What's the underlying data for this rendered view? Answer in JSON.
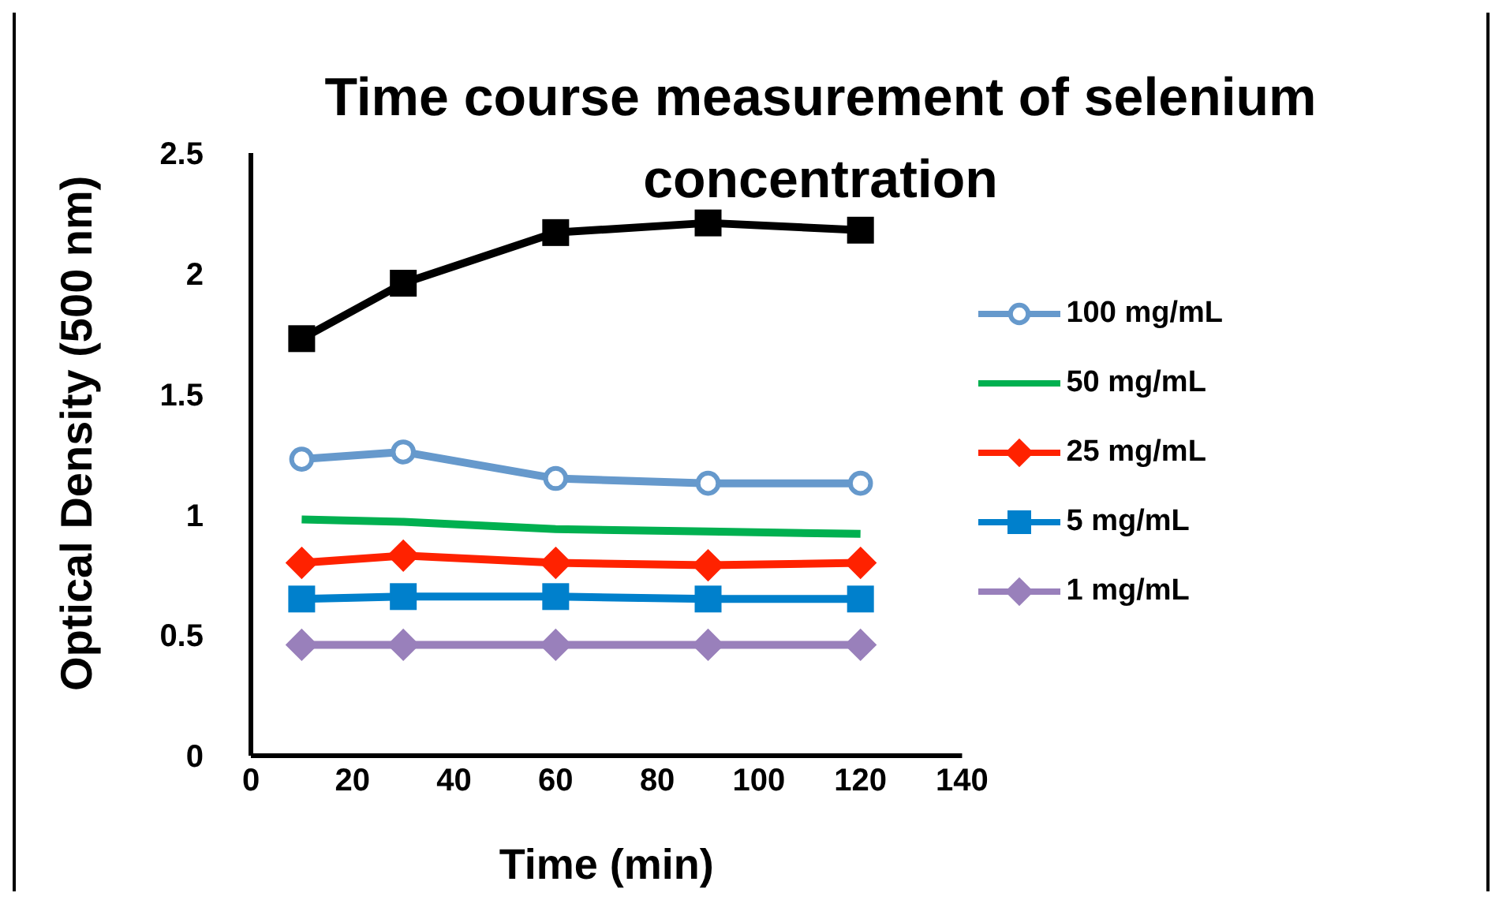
{
  "chart_data": {
    "type": "line",
    "title": "Time course measurement of selenium concentration",
    "xlabel": "Time (min)",
    "ylabel": "Optical Density (500 nm)",
    "x": [
      10,
      30,
      60,
      90,
      120
    ],
    "series": [
      {
        "color": "#000000",
        "marker": "square",
        "values": [
          1.73,
          1.96,
          2.17,
          2.21,
          2.18
        ]
      },
      {
        "name": "100 mg/mL",
        "color": "#6699cc",
        "marker": "circle",
        "values": [
          1.23,
          1.26,
          1.15,
          1.13,
          1.13
        ]
      },
      {
        "name": "50 mg/mL",
        "color": "#00b050",
        "marker": "none",
        "values": [
          0.98,
          0.97,
          0.94,
          0.93,
          0.92
        ]
      },
      {
        "name": "25 mg/mL",
        "color": "#ff2200",
        "marker": "diamond",
        "values": [
          0.8,
          0.83,
          0.8,
          0.79,
          0.8
        ]
      },
      {
        "name": "5 mg/mL",
        "color": "#0080cc",
        "marker": "square",
        "values": [
          0.65,
          0.66,
          0.66,
          0.65,
          0.65
        ]
      },
      {
        "name": "1 mg/mL",
        "color": "#9980bb",
        "marker": "diamond",
        "values": [
          0.46,
          0.46,
          0.46,
          0.46,
          0.46
        ]
      }
    ],
    "xlim": [
      0,
      140
    ],
    "xticks": [
      0,
      20,
      40,
      60,
      80,
      100,
      120,
      140
    ],
    "ylim": [
      0,
      2.5
    ],
    "yticks": [
      0,
      0.5,
      1,
      1.5,
      2,
      2.5
    ],
    "grid": false,
    "legend": "right"
  }
}
